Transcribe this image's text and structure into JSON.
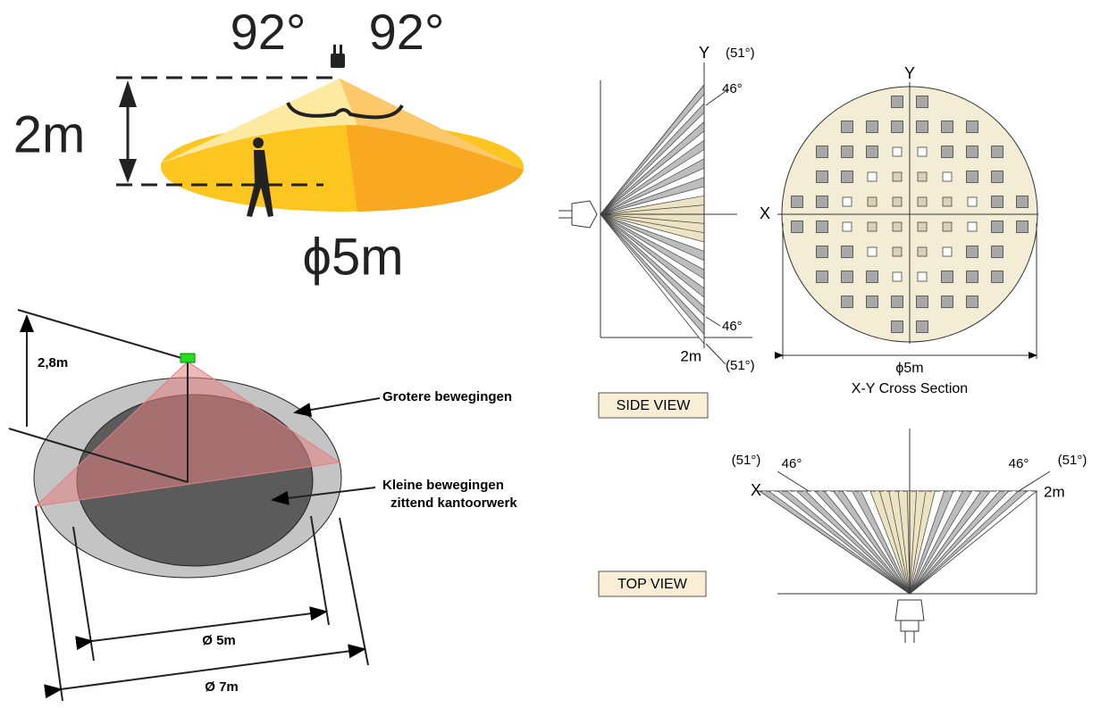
{
  "cone": {
    "angle_left": "92°",
    "angle_right": "92°",
    "height": "2m",
    "diameter": "ϕ5m"
  },
  "iso": {
    "height": "2,8m",
    "outer_label": "Grotere bewegingen",
    "inner_label_1": "Kleine bewegingen",
    "inner_label_2": "zittend kantoorwerk",
    "inner_diameter": "Ø 5m",
    "outer_diameter": "Ø 7m"
  },
  "side_view": {
    "axis_y": "Y",
    "angle_top_outer": "(51°)",
    "angle_top_inner": "46°",
    "angle_bottom_inner": "46°",
    "distance": "2m",
    "angle_bottom_outer": "(51°)",
    "caption": "SIDE VIEW"
  },
  "cross_section": {
    "axis_y": "Y",
    "axis_x": "X",
    "diameter": "ϕ5m",
    "caption": "X-Y Cross Section"
  },
  "top_view": {
    "angle_left_outer": "(51°)",
    "angle_left_inner": "46°",
    "angle_right_inner": "46°",
    "angle_right_outer": "(51°)",
    "axis_x": "X",
    "distance": "2m",
    "caption": "TOP VIEW"
  }
}
